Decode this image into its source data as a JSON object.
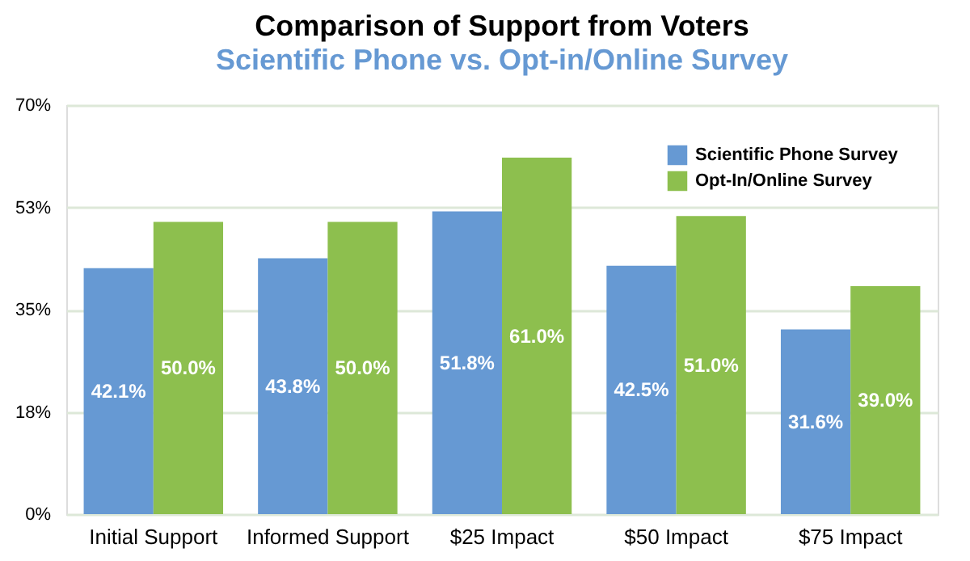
{
  "chart_data": {
    "type": "bar",
    "title": "Comparison of Support from Voters",
    "subtitle": "Scientific Phone vs. Opt-in/Online Survey",
    "categories": [
      "Initial Support",
      "Informed Support",
      "$25 Impact",
      "$50 Impact",
      "$75 Impact"
    ],
    "series": [
      {
        "name": "Scientific Phone Survey",
        "color": "#6699d3",
        "values": [
          42.1,
          43.8,
          51.8,
          42.5,
          31.6
        ],
        "value_labels": [
          "42.1%",
          "43.8%",
          "51.8%",
          "42.5%",
          "31.6%"
        ]
      },
      {
        "name": "Opt-In/Online Survey",
        "color": "#8dbf4e",
        "values": [
          50.0,
          50.0,
          61.0,
          51.0,
          39.0
        ],
        "value_labels": [
          "50.0%",
          "50.0%",
          "61.0%",
          "51.0%",
          "39.0%"
        ]
      }
    ],
    "ylim": [
      0,
      70
    ],
    "yticks": [
      {
        "value": 0,
        "label": "0%"
      },
      {
        "value": 17.5,
        "label": "18%"
      },
      {
        "value": 35,
        "label": "35%"
      },
      {
        "value": 52.5,
        "label": "53%"
      },
      {
        "value": 70,
        "label": "70%"
      }
    ],
    "grid": "y",
    "legend": "top right"
  }
}
